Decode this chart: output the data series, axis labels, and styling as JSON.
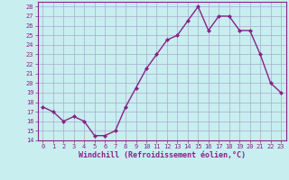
{
  "x": [
    0,
    1,
    2,
    3,
    4,
    5,
    6,
    7,
    8,
    9,
    10,
    11,
    12,
    13,
    14,
    15,
    16,
    17,
    18,
    19,
    20,
    21,
    22,
    23
  ],
  "y": [
    17.5,
    17.0,
    16.0,
    16.5,
    16.0,
    14.5,
    14.5,
    15.0,
    17.5,
    19.5,
    21.5,
    23.0,
    24.5,
    25.0,
    26.5,
    28.0,
    25.5,
    27.0,
    27.0,
    25.5,
    25.5,
    23.0,
    20.0,
    19.0
  ],
  "line_color": "#882288",
  "marker": "D",
  "marker_size": 2,
  "bg_color": "#c8eef0",
  "grid_color": "#aaaacc",
  "xlabel": "Windchill (Refroidissement éolien,°C)",
  "xlim": [
    -0.5,
    23.5
  ],
  "ylim": [
    14,
    28.5
  ],
  "yticks": [
    14,
    15,
    16,
    17,
    18,
    19,
    20,
    21,
    22,
    23,
    24,
    25,
    26,
    27,
    28
  ],
  "xticks": [
    0,
    1,
    2,
    3,
    4,
    5,
    6,
    7,
    8,
    9,
    10,
    11,
    12,
    13,
    14,
    15,
    16,
    17,
    18,
    19,
    20,
    21,
    22,
    23
  ],
  "tick_fontsize": 5,
  "xlabel_fontsize": 6,
  "line_width": 1.0
}
